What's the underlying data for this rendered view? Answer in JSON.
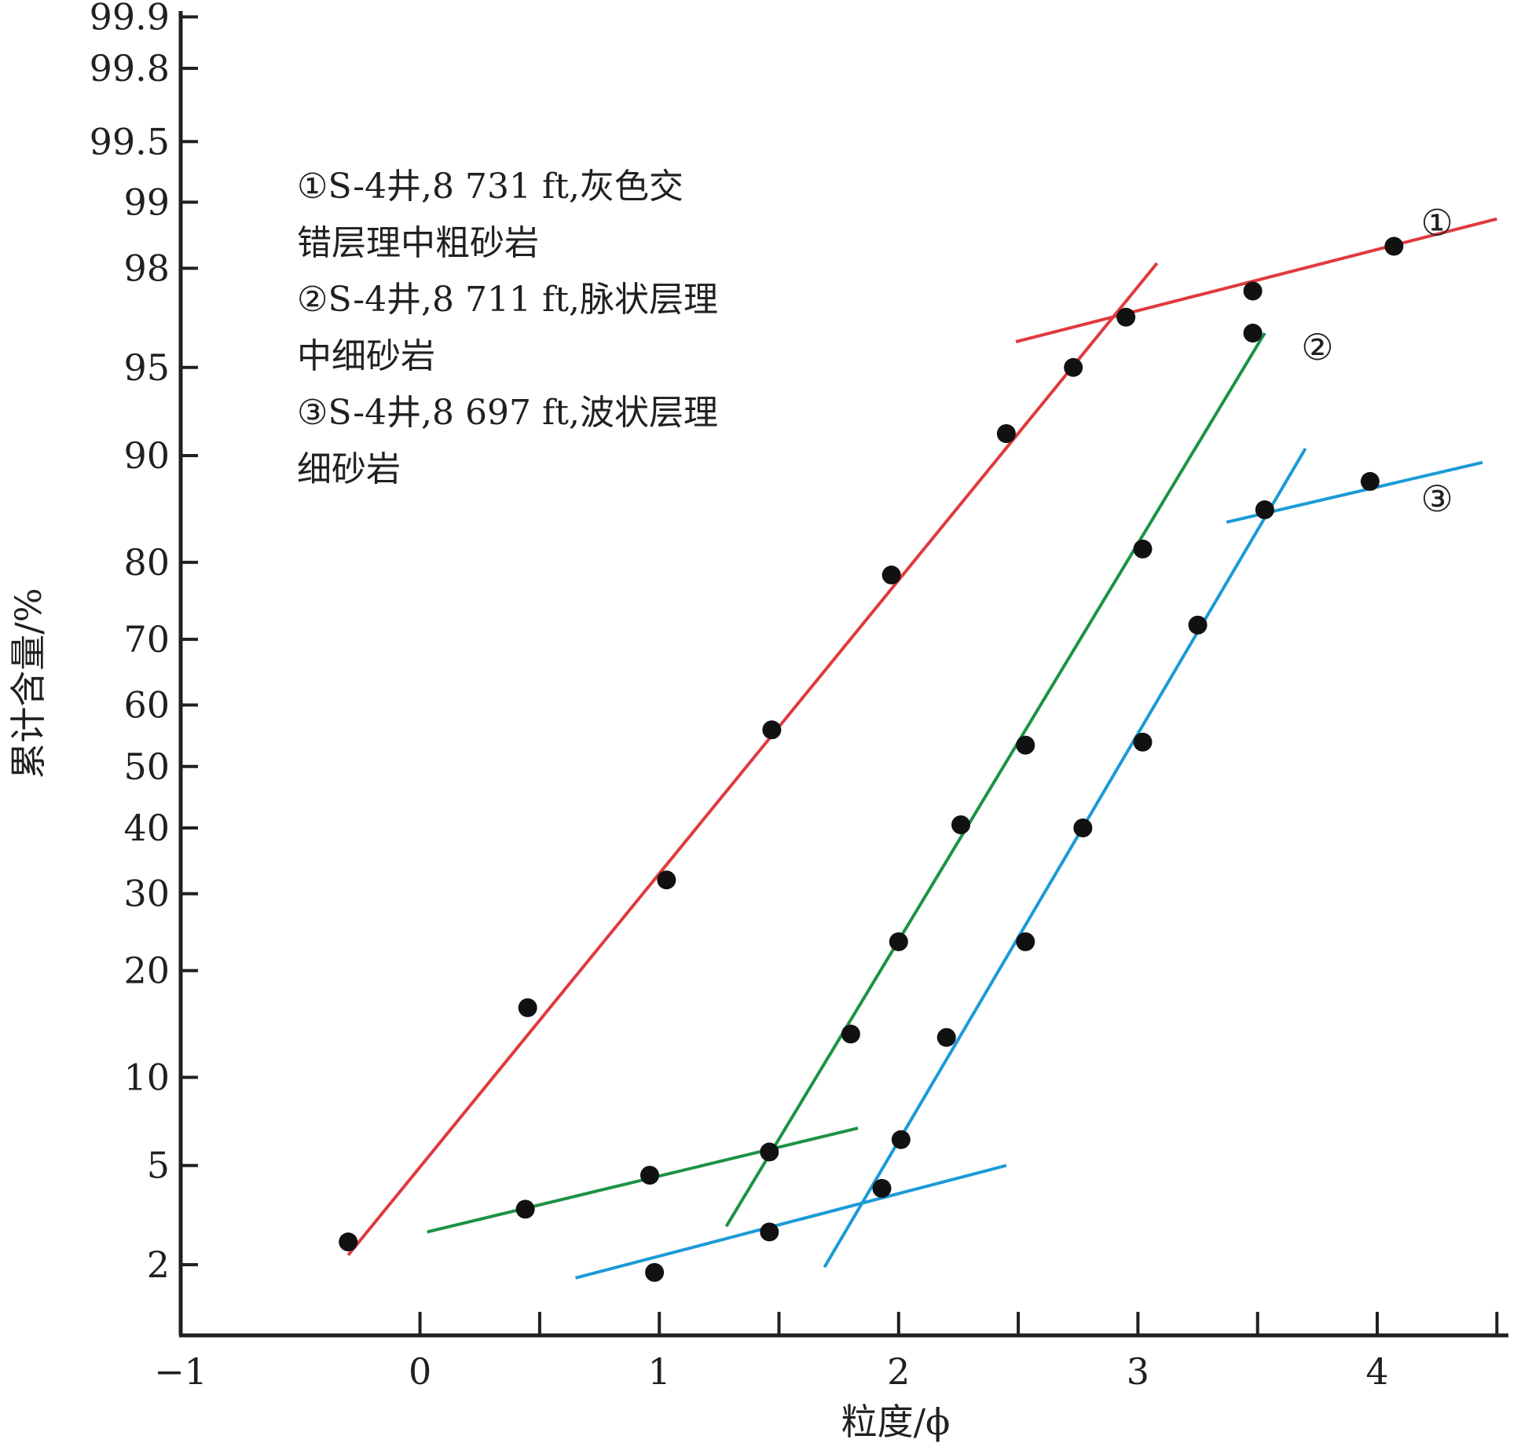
{
  "chart_data": {
    "type": "scatter",
    "xlabel": "粒度/ϕ",
    "ylabel": "累计含量/%",
    "xlim": [
      -1,
      4.5
    ],
    "x_ticks": [
      -1,
      0,
      1,
      2,
      3,
      4
    ],
    "x_tick_labels": [
      "−1",
      "0",
      "1",
      "2",
      "3",
      "4"
    ],
    "y_scale": "probability",
    "y_ticks": [
      2,
      5,
      10,
      20,
      30,
      40,
      50,
      60,
      70,
      80,
      90,
      95,
      98,
      99,
      99.5,
      99.8,
      99.9
    ],
    "y_tick_labels": [
      "2",
      "5",
      "10",
      "20",
      "30",
      "40",
      "50",
      "60",
      "70",
      "80",
      "90",
      "95",
      "98",
      "99",
      "99.5",
      "99.8",
      "99.9"
    ],
    "legend": [
      {
        "lines": [
          "①S-4井,8 731 ft,灰色交",
          "错层理中粗砂岩"
        ]
      },
      {
        "lines": [
          "②S-4井,8 711 ft,脉状层理",
          "中细砂岩"
        ]
      },
      {
        "lines": [
          "③S-4井,8 697 ft,波状层理",
          "细砂岩"
        ]
      }
    ],
    "series": [
      {
        "tag": "①",
        "color": "#e03a3e",
        "tag_x": 4.25,
        "tag_y": 98.75,
        "points": [
          [
            -0.3,
            2.5
          ],
          [
            0.45,
            16
          ],
          [
            1.03,
            32
          ],
          [
            1.47,
            56
          ],
          [
            1.97,
            78.5
          ],
          [
            2.45,
            91.5
          ],
          [
            2.73,
            95
          ],
          [
            2.95,
            96.8
          ],
          [
            3.48,
            97.5
          ],
          [
            4.07,
            98.4
          ]
        ],
        "fit_lines": [
          [
            [
              -0.3,
              2.2
            ],
            [
              3.08,
              98.1
            ]
          ],
          [
            [
              2.49,
              96.0
            ],
            [
              4.5,
              98.8
            ]
          ]
        ]
      },
      {
        "tag": "②",
        "color": "#1c9245",
        "tag_x": 3.75,
        "tag_y": 95.8,
        "points": [
          [
            0.44,
            3.4
          ],
          [
            0.96,
            4.6
          ],
          [
            1.46,
            5.6
          ],
          [
            1.8,
            13.5
          ],
          [
            2.0,
            23.5
          ],
          [
            2.26,
            40.5
          ],
          [
            2.53,
            53.5
          ],
          [
            3.02,
            81.5
          ],
          [
            3.48,
            96.3
          ]
        ],
        "fit_lines": [
          [
            [
              0.03,
              2.75
            ],
            [
              1.83,
              6.8
            ]
          ],
          [
            [
              1.28,
              2.9
            ],
            [
              3.53,
              96.3
            ]
          ]
        ]
      },
      {
        "tag": "③",
        "color": "#1b9ad6",
        "tag_x": 4.25,
        "tag_y": 86.5,
        "points": [
          [
            0.98,
            1.85
          ],
          [
            1.46,
            2.75
          ],
          [
            1.93,
            4.1
          ],
          [
            2.01,
            6.2
          ],
          [
            2.2,
            13.2
          ],
          [
            2.53,
            23.5
          ],
          [
            2.77,
            40
          ],
          [
            3.02,
            54
          ],
          [
            3.25,
            72
          ],
          [
            3.53,
            85.5
          ],
          [
            3.97,
            88
          ]
        ],
        "fit_lines": [
          [
            [
              0.65,
              1.75
            ],
            [
              2.45,
              5.0
            ]
          ],
          [
            [
              1.69,
              1.95
            ],
            [
              3.7,
              90.5
            ]
          ],
          [
            [
              3.37,
              84.3
            ],
            [
              4.44,
              89.5
            ]
          ]
        ]
      }
    ]
  }
}
